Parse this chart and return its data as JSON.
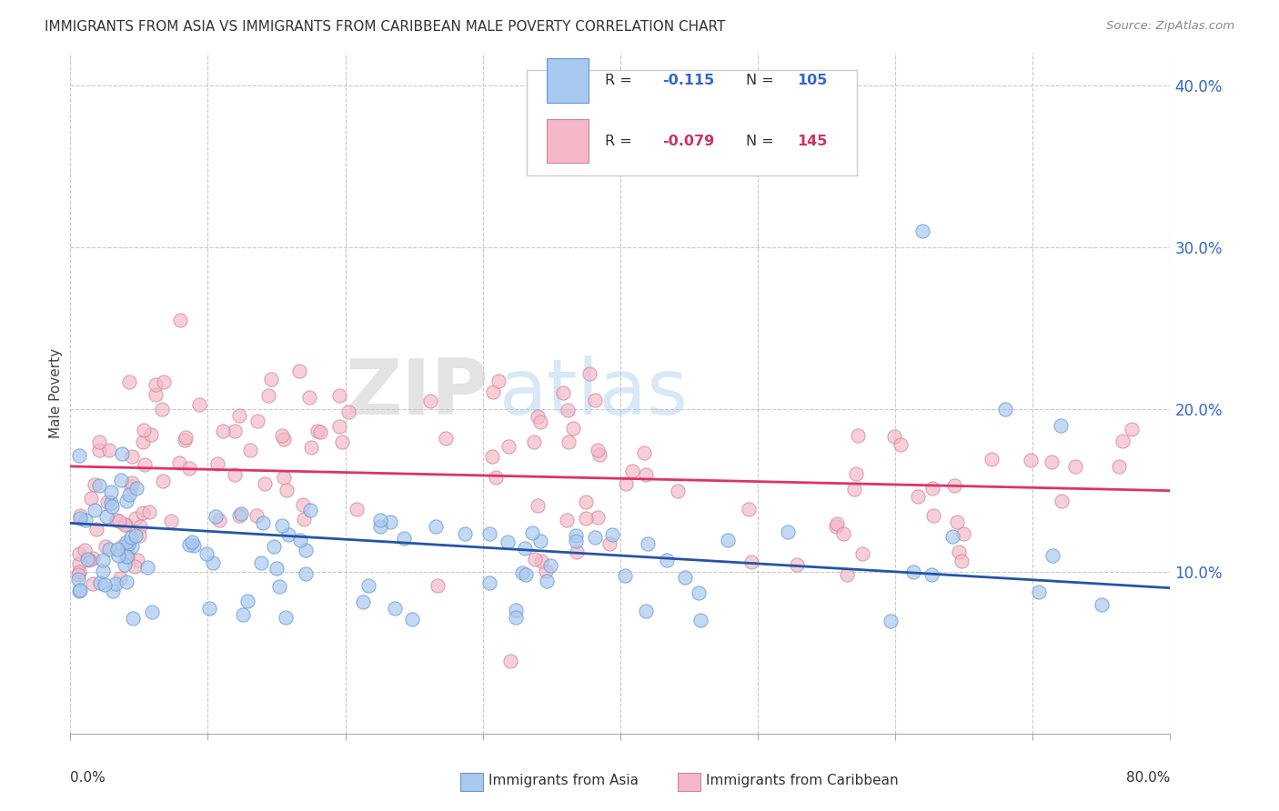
{
  "title": "IMMIGRANTS FROM ASIA VS IMMIGRANTS FROM CARIBBEAN MALE POVERTY CORRELATION CHART",
  "source": "Source: ZipAtlas.com",
  "ylabel": "Male Poverty",
  "xlim": [
    0.0,
    0.8
  ],
  "ylim": [
    0.0,
    0.42
  ],
  "yticks": [
    0.1,
    0.2,
    0.3,
    0.4
  ],
  "ytick_labels": [
    "10.0%",
    "20.0%",
    "30.0%",
    "40.0%"
  ],
  "legend1_R": "-0.115",
  "legend1_N": "105",
  "legend2_R": "-0.079",
  "legend2_N": "145",
  "color_asia": "#a8c8f0",
  "color_asia_edge": "#6699cc",
  "color_caribbean": "#f5b8c8",
  "color_caribbean_edge": "#cc8899",
  "color_asia_line": "#2255aa",
  "color_caribbean_line": "#dd3366",
  "watermark_zip": "ZIP",
  "watermark_atlas": "atlas",
  "background_color": "#ffffff",
  "grid_color": "#bbbbbb",
  "asia_line_start": 0.13,
  "asia_line_end": 0.09,
  "carib_line_start": 0.165,
  "carib_line_end": 0.15
}
